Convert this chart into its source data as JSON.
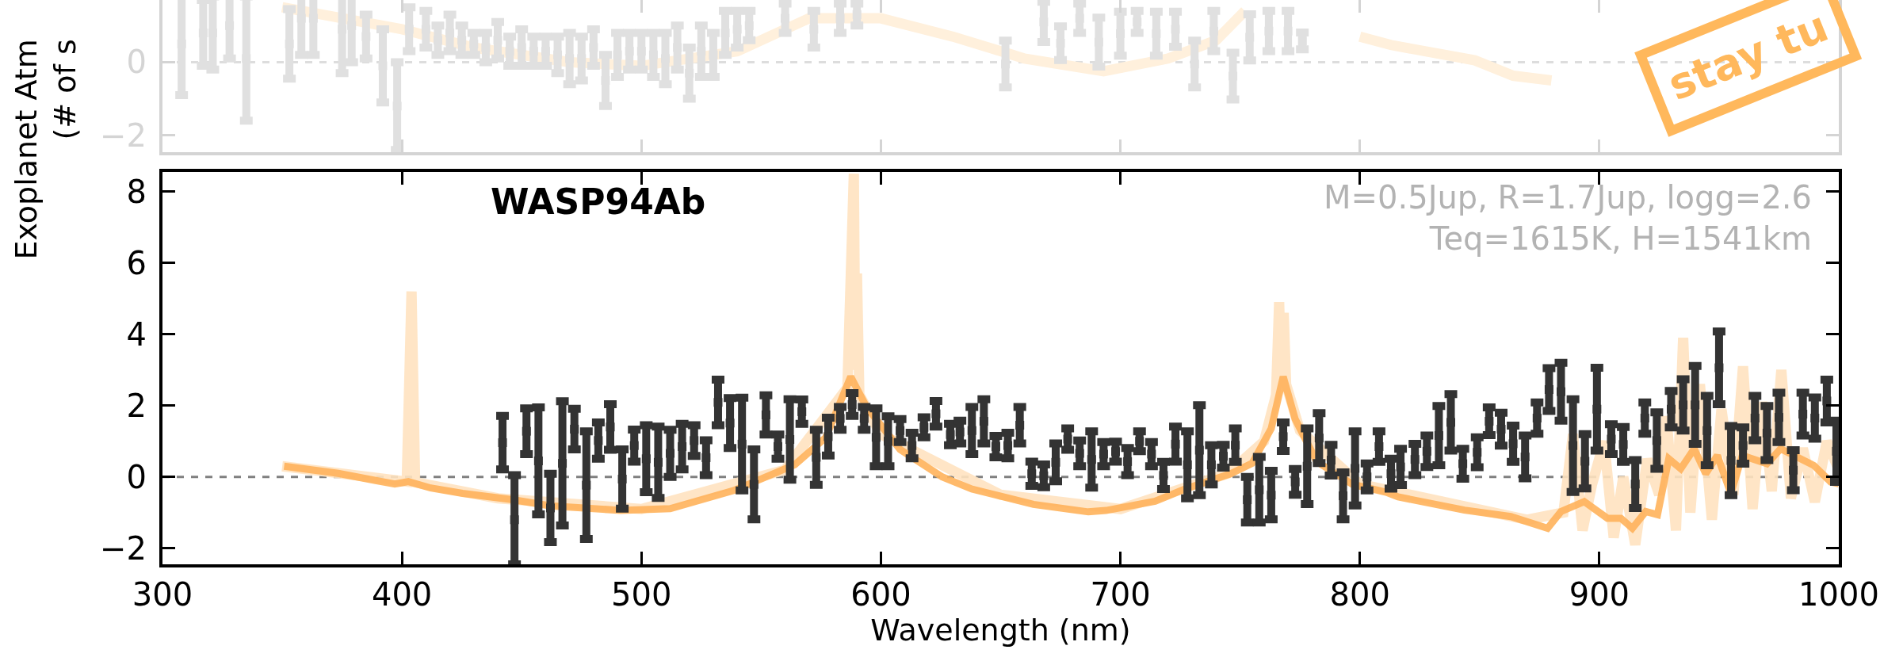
{
  "chart_data": [
    {
      "type": "scatter",
      "xlim": [
        300,
        1000
      ],
      "xticks": [
        300,
        400,
        500,
        600,
        700,
        800,
        900,
        1000
      ],
      "ylim": [
        -2.46,
        1.7
      ],
      "yticks": [
        0,
        -2
      ],
      "tick_labels": "y",
      "ref_lines": [
        {
          "axis": "y",
          "value": 0,
          "color": "#dddddd",
          "line_style": "dashed"
        }
      ],
      "annotations": [
        "stay tu"
      ],
      "series": [
        {
          "type": "line",
          "color": "#fff0dc",
          "x": [
            350,
            400,
            430,
            470,
            500,
            540,
            570,
            600,
            630,
            660,
            693,
            720,
            740,
            752,
            760,
            780,
            800,
            813,
            848,
            864,
            880
          ],
          "values": [
            1.5,
            0.9,
            0.4,
            0.0,
            -0.1,
            0.3,
            1.2,
            1.2,
            0.7,
            0.1,
            -0.25,
            0.1,
            0.6,
            1.4,
            null,
            null,
            0.7,
            0.47,
            0.05,
            -0.37,
            -0.5
          ]
        },
        {
          "marker": "square",
          "color": "#e0e0e0",
          "x": [
            308,
            317,
            321,
            328,
            335,
            353,
            358,
            363,
            375,
            379,
            385,
            392,
            398,
            403,
            410,
            415,
            420,
            425,
            430,
            435,
            440,
            445,
            450,
            455,
            460,
            465,
            470,
            475,
            480,
            485,
            490,
            495,
            500,
            505,
            510,
            515,
            520,
            525,
            530,
            535,
            540,
            545,
            560,
            572,
            583,
            590,
            652,
            668,
            675,
            683,
            691,
            700,
            707,
            715,
            723,
            731,
            739,
            747,
            754,
            762,
            770,
            776
          ],
          "values": [
            0.5,
            0.8,
            0.8,
            1.0,
            0.1,
            0.5,
            1.2,
            1.2,
            0.9,
            1.0,
            0.7,
            -0.1,
            -1.2,
            0.9,
            0.9,
            0.6,
            0.8,
            0.6,
            0.5,
            0.4,
            0.6,
            0.3,
            0.4,
            0.3,
            0.3,
            0.2,
            0.1,
            0.1,
            0.4,
            -0.5,
            0.2,
            0.3,
            0.3,
            0.2,
            0.1,
            0.4,
            -0.3,
            0.3,
            0.2,
            0.8,
            0.9,
            1.0,
            1.2,
            0.9,
            1.2,
            1.3,
            -0.05,
            1.1,
            0.52,
            1.2,
            0.55,
            0.78,
            1.1,
            0.78,
            0.9,
            -0.05,
            0.85,
            -0.38,
            0.68,
            0.85,
            0.85,
            0.58
          ],
          "errors": [
            1.4,
            0.9,
            1.0,
            0.9,
            1.7,
            0.95,
            1.0,
            1.0,
            1.2,
            1.0,
            0.6,
            1.0,
            1.2,
            0.6,
            0.5,
            0.4,
            0.5,
            0.4,
            0.3,
            0.4,
            0.5,
            0.4,
            0.5,
            0.4,
            0.4,
            0.5,
            0.7,
            0.6,
            0.5,
            0.7,
            0.6,
            0.5,
            0.5,
            0.6,
            0.7,
            0.6,
            0.7,
            0.7,
            0.6,
            0.6,
            0.5,
            0.4,
            0.4,
            0.5,
            0.4,
            0.3,
            0.64,
            0.55,
            0.46,
            0.4,
            0.67,
            0.6,
            0.3,
            0.6,
            0.48,
            0.64,
            0.55,
            0.64,
            0.63,
            0.55,
            0.55,
            0.23
          ]
        }
      ]
    },
    {
      "type": "scatter",
      "title": "WASP94Ab",
      "subtitle": "M=0.5Jup, R=1.7Jup, logg=2.6\nTeq=1615K, H=1541km",
      "xlabel": "Wavelength (nm)",
      "ylabel": "Exoplanet Atm\n(# of s",
      "xlim": [
        300,
        1000
      ],
      "xticks": [
        300,
        400,
        500,
        600,
        700,
        800,
        900,
        1000
      ],
      "ylim": [
        -2.45,
        8.55
      ],
      "yticks": [
        -2,
        0,
        2,
        4,
        6,
        8
      ],
      "ref_lines": [
        {
          "axis": "y",
          "value": 0,
          "color": "#808080",
          "line_style": "dashed"
        }
      ],
      "series": [
        {
          "type": "line",
          "color": "#ffe3c0",
          "x": [
            350,
            402,
            404,
            405.5,
            440,
            500,
            560,
            586,
            588.7,
            589.3,
            590,
            591,
            600,
            650,
            700,
            745,
            760,
            765,
            766.3,
            767.2,
            768.2,
            769.2,
            775,
            800,
            870,
            885,
            889,
            893,
            897,
            902,
            906,
            910,
            915,
            920,
            925,
            928,
            932,
            935,
            938,
            942,
            947,
            951,
            956,
            960,
            964,
            968,
            972,
            976,
            980,
            985,
            990,
            995,
            1000
          ],
          "values": [
            0.3,
            -0.13,
            5.2,
            -0.15,
            -0.6,
            -0.9,
            0.2,
            2.5,
            8.5,
            3.0,
            5.7,
            2.3,
            1.2,
            -0.5,
            -0.9,
            0.1,
            1.0,
            2.3,
            4.9,
            2.6,
            4.6,
            2.6,
            1.3,
            -0.2,
            -1.2,
            -1.0,
            1.2,
            -1.5,
            -0.2,
            1.0,
            -1.7,
            0.0,
            -1.9,
            0.5,
            -0.5,
            1.7,
            -1.5,
            3.9,
            -1.0,
            2.6,
            -1.2,
            1.9,
            -0.5,
            3.1,
            -0.9,
            2.1,
            -0.4,
            3.0,
            -0.6,
            0.8,
            -0.7,
            1.0,
            0.2
          ]
        },
        {
          "type": "line",
          "color": "#ffb35c",
          "x": [
            350.8,
            373.4,
            389,
            397,
            402.7,
            412,
            425.3,
            446.3,
            462,
            491.5,
            512,
            538.6,
            564,
            577,
            587.4,
            594,
            608,
            625.6,
            638,
            663.7,
            686.6,
            694,
            714.5,
            727,
            746,
            755,
            763,
            768,
            773,
            782,
            797,
            811,
            816,
            843.7,
            863,
            878.4,
            884,
            893.7,
            903.4,
            909,
            913.8,
            919.4,
            924.3,
            929,
            934,
            939.6,
            944.4,
            949.3,
            954.9,
            959.7,
            970,
            975.7,
            989.6,
            996.6,
            1000
          ],
          "values": [
            0.3,
            0.1,
            -0.1,
            -0.2,
            -0.13,
            -0.31,
            -0.46,
            -0.64,
            -0.81,
            -0.94,
            -0.89,
            -0.38,
            0.34,
            1.11,
            2.81,
            1.96,
            0.77,
            0.0,
            -0.34,
            -0.77,
            -0.98,
            -0.94,
            -0.68,
            -0.34,
            0.09,
            0.38,
            1.36,
            2.81,
            1.62,
            0.43,
            -0.21,
            -0.43,
            -0.56,
            -0.93,
            -1.11,
            -1.44,
            -0.97,
            -0.69,
            -1.16,
            -1.16,
            -1.44,
            -0.97,
            -1.06,
            0.51,
            0.23,
            0.79,
            0.09,
            0.6,
            -0.46,
            0.6,
            0.37,
            0.79,
            0.32,
            -0.14,
            -0.19
          ]
        },
        {
          "marker": "square",
          "color": "#333333",
          "x": [
            442,
            447,
            452,
            457,
            462,
            467,
            472,
            477,
            482,
            487,
            492,
            497,
            502,
            507,
            512,
            517,
            522,
            527,
            532,
            537,
            542,
            547,
            552,
            557,
            562,
            567,
            573,
            578,
            583,
            588,
            593,
            598,
            603,
            608,
            613,
            618,
            623,
            629,
            633,
            638,
            643,
            648,
            653,
            658,
            663,
            668,
            673,
            678,
            683,
            688,
            693,
            698,
            703,
            708,
            713,
            718,
            723,
            728,
            733,
            738,
            743,
            748,
            753,
            758,
            763,
            768,
            773,
            778,
            783,
            788,
            793,
            798,
            803,
            808,
            813,
            817,
            823,
            828,
            833,
            838,
            843,
            849,
            854,
            859,
            864,
            869,
            874,
            879,
            884,
            889,
            894,
            899,
            905,
            910,
            915,
            919,
            924,
            930,
            935,
            940,
            945,
            950,
            955,
            960,
            965,
            970,
            975,
            981,
            985,
            990,
            995,
            999
          ],
          "values": [
            0.96,
            -1.2,
            1.28,
            0.45,
            -0.87,
            0.38,
            1.34,
            -0.23,
            1.02,
            1.4,
            -0.06,
            0.88,
            0.51,
            0.41,
            0.66,
            0.85,
            1.02,
            0.54,
            2.09,
            1.51,
            0.92,
            -0.21,
            1.74,
            0.85,
            1.05,
            1.83,
            0.55,
            1.13,
            1.64,
            2.03,
            1.64,
            1.11,
            1.0,
            1.3,
            0.88,
            1.39,
            1.77,
            1.19,
            1.26,
            1.3,
            1.56,
            0.85,
            0.88,
            1.45,
            0.09,
            0.03,
            0.41,
            1.06,
            0.66,
            0.49,
            0.64,
            0.71,
            0.43,
            1.0,
            0.64,
            0.04,
            0.92,
            0.34,
            0.75,
            0.34,
            0.58,
            0.89,
            -0.64,
            -0.36,
            -0.51,
            1.13,
            -0.14,
            0.3,
            1.09,
            0.47,
            -0.53,
            0.24,
            0.0,
            0.85,
            0.09,
            0.28,
            0.49,
            0.72,
            1.16,
            1.53,
            0.37,
            0.69,
            1.56,
            1.34,
            0.93,
            0.56,
            1.65,
            2.45,
            2.39,
            0.88,
            0.44,
            1.9,
            1.06,
            0.91,
            -0.2,
            1.65,
            1.02,
            1.9,
            2.02,
            2.02,
            1.3,
            3.06,
            0.46,
            0.88,
            1.65,
            1.23,
            1.67,
            0.19,
            1.76,
            1.65,
            2.13,
            0.72
          ],
          "errors": [
            0.75,
            1.25,
            0.64,
            1.5,
            0.96,
            1.74,
            0.57,
            1.51,
            0.51,
            0.64,
            0.83,
            0.45,
            0.94,
            1.0,
            0.66,
            0.64,
            0.43,
            0.49,
            0.64,
            0.7,
            1.3,
            0.98,
            0.55,
            0.34,
            1.13,
            0.34,
            0.77,
            0.53,
            0.32,
            0.32,
            0.32,
            0.81,
            0.7,
            0.32,
            0.36,
            0.28,
            0.36,
            0.3,
            0.32,
            0.66,
            0.62,
            0.3,
            0.36,
            0.51,
            0.34,
            0.32,
            0.53,
            0.3,
            0.36,
            0.79,
            0.34,
            0.28,
            0.38,
            0.28,
            0.34,
            0.38,
            0.49,
            0.94,
            1.26,
            0.55,
            0.32,
            0.47,
            0.64,
            0.92,
            0.68,
            0.4,
            0.36,
            1.06,
            0.7,
            0.43,
            0.66,
            1.04,
            0.38,
            0.43,
            0.42,
            0.51,
            0.44,
            0.44,
            0.83,
            0.79,
            0.42,
            0.42,
            0.39,
            0.46,
            0.51,
            0.6,
            0.44,
            0.6,
            0.81,
            1.3,
            0.76,
            1.16,
            0.42,
            0.49,
            0.67,
            0.44,
            0.79,
            0.51,
            0.72,
            1.09,
            0.97,
            1.02,
            0.97,
            0.51,
            0.62,
            0.76,
            0.69,
            0.56,
            0.6,
            0.58,
            0.6,
            0.86
          ]
        }
      ]
    }
  ]
}
